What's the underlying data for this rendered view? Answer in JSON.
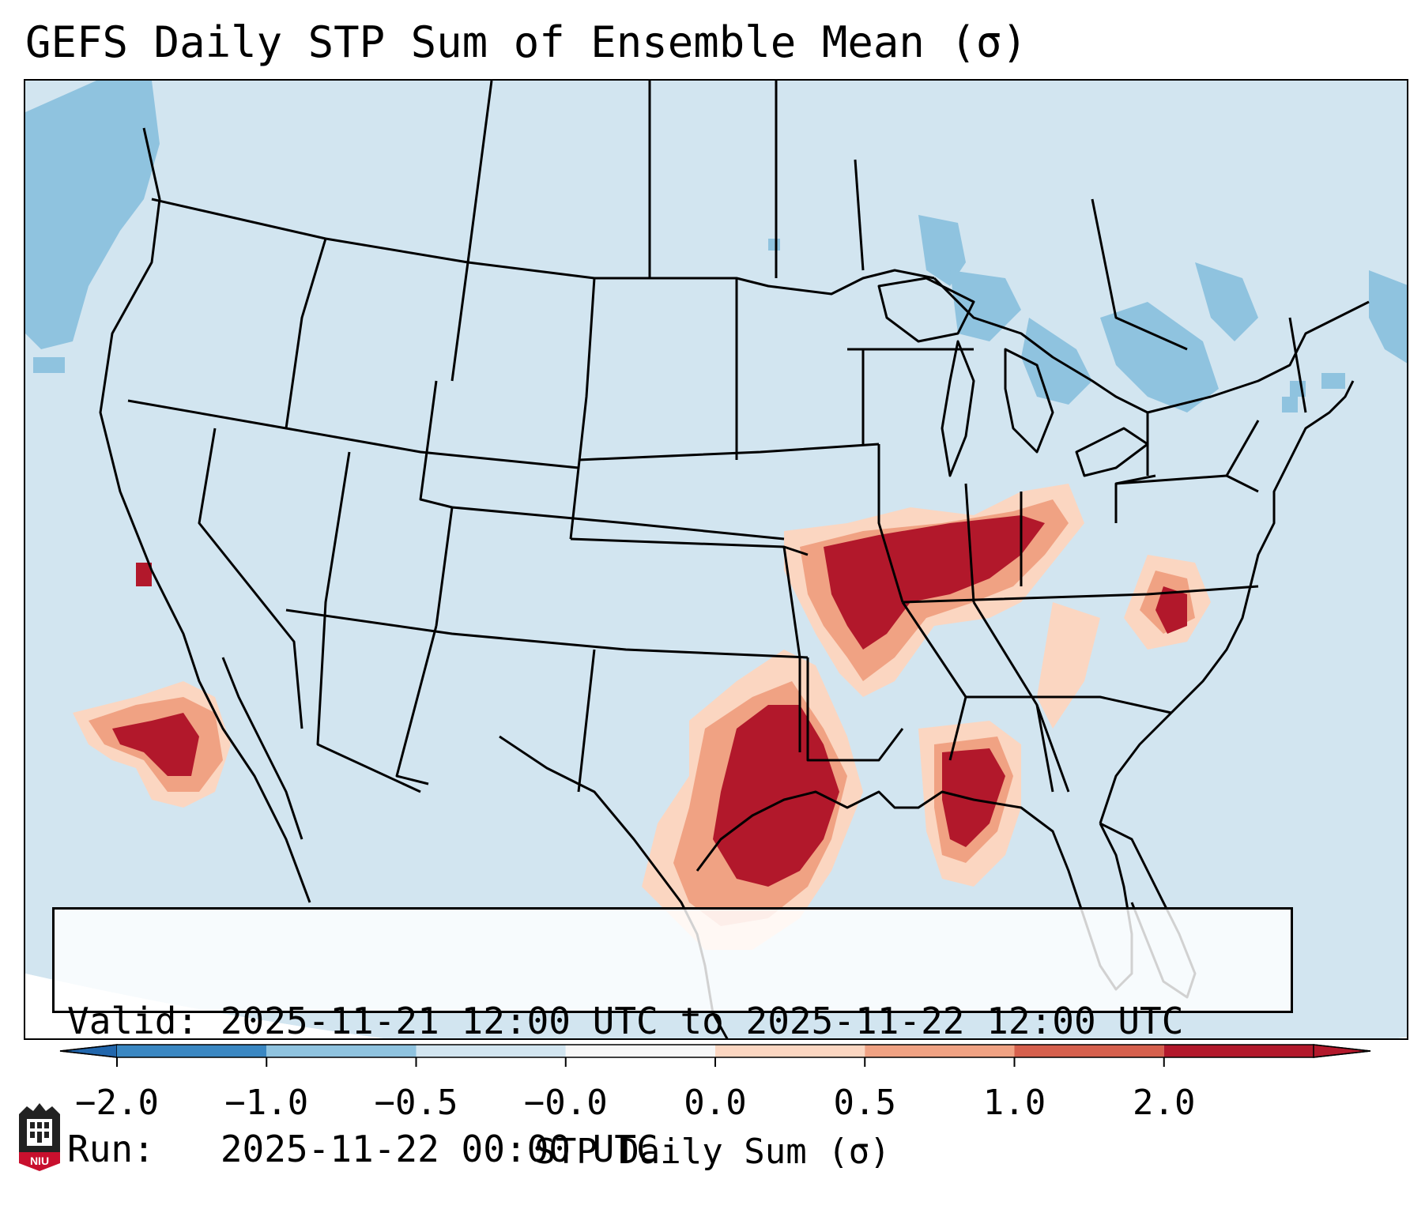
{
  "title": "GEFS Daily STP Sum of Ensemble Mean (σ)",
  "info": {
    "valid_line": "Valid: 2025-11-21 12:00 UTC to 2025-11-22 12:00 UTC",
    "run_line": "Run:   2025-11-22 00:00 UTC"
  },
  "colorbar": {
    "label": "STP Daily Sum (σ)",
    "ticks": [
      "−2.0",
      "−1.0",
      "−0.5",
      "−0.0",
      "0.0",
      "0.5",
      "1.0",
      "2.0"
    ],
    "colors": [
      "#3a87c2",
      "#8fc3df",
      "#d2e5f0",
      "#f7f7f7",
      "#fbd6c1",
      "#f0a283",
      "#d6604d",
      "#b2182b"
    ],
    "under_color": "#2166ac",
    "over_color": "#b2182b"
  },
  "map": {
    "background_color": "#d2e5f0",
    "land_outline_color": "#000000"
  },
  "logo": {
    "text": "NIU"
  }
}
